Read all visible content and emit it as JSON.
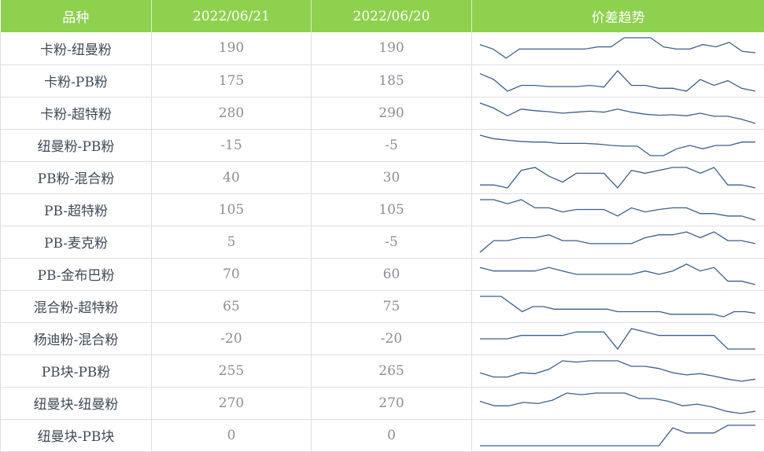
{
  "table": {
    "headers": {
      "variety": "品种",
      "date1": "2022/06/21",
      "date2": "2022/06/20",
      "trend": "价差趋势"
    },
    "rows": [
      {
        "name": "卡粉-纽曼粉",
        "v1": "190",
        "v2": "190",
        "trend": [
          190,
          180,
          160,
          180,
          180,
          180,
          180,
          180,
          180,
          185,
          185,
          205,
          205,
          205,
          185,
          180,
          180,
          190,
          185,
          195,
          175,
          172
        ]
      },
      {
        "name": "卡粉-PB粉",
        "v1": "175",
        "v2": "185",
        "trend": [
          200,
          190,
          170,
          180,
          180,
          178,
          178,
          178,
          180,
          177,
          205,
          180,
          180,
          175,
          175,
          170,
          190,
          180,
          188,
          175,
          170
        ]
      },
      {
        "name": "卡粉-超特粉",
        "v1": "280",
        "v2": "290",
        "trend": [
          310,
          300,
          285,
          298,
          295,
          293,
          290,
          292,
          294,
          292,
          298,
          292,
          288,
          286,
          287,
          285,
          290,
          284,
          284,
          278,
          270
        ]
      },
      {
        "name": "纽曼粉-PB粉",
        "v1": "-15",
        "v2": "-5",
        "trend": [
          5,
          0,
          -2,
          -4,
          -5,
          -5,
          -7,
          -7,
          -7,
          -8,
          -10,
          -11,
          -11,
          -25,
          -25,
          -15,
          -10,
          -15,
          -10,
          -10,
          -5,
          -5
        ]
      },
      {
        "name": "PB粉-混合粉",
        "v1": "40",
        "v2": "30",
        "trend": [
          30,
          30,
          25,
          55,
          60,
          45,
          35,
          50,
          50,
          50,
          25,
          55,
          50,
          55,
          60,
          60,
          50,
          60,
          30,
          30,
          25
        ]
      },
      {
        "name": "PB-超特粉",
        "v1": "105",
        "v2": "105",
        "trend": [
          115,
          115,
          110,
          115,
          105,
          105,
          100,
          103,
          103,
          103,
          95,
          105,
          100,
          103,
          105,
          105,
          98,
          98,
          95,
          95,
          90
        ]
      },
      {
        "name": "PB-麦克粉",
        "v1": "5",
        "v2": "-5",
        "trend": [
          -25,
          -5,
          -5,
          0,
          0,
          5,
          -5,
          -5,
          -10,
          -10,
          -10,
          -10,
          0,
          5,
          5,
          10,
          0,
          10,
          -5,
          -5,
          -10
        ]
      },
      {
        "name": "PB-金布巴粉",
        "v1": "70",
        "v2": "60",
        "trend": [
          80,
          75,
          75,
          75,
          75,
          80,
          75,
          70,
          70,
          70,
          70,
          70,
          75,
          70,
          75,
          85,
          75,
          80,
          60,
          60,
          55
        ]
      },
      {
        "name": "混合粉-超特粉",
        "v1": "65",
        "v2": "75",
        "trend": [
          95,
          95,
          95,
          80,
          65,
          75,
          75,
          70,
          70,
          70,
          70,
          70,
          70,
          65,
          65,
          65,
          65,
          65,
          60,
          60,
          60,
          60,
          60,
          55,
          65,
          65,
          62
        ]
      },
      {
        "name": "杨迪粉-混合粉",
        "v1": "-20",
        "v2": "-20",
        "trend": [
          -5,
          -5,
          -5,
          0,
          0,
          0,
          0,
          5,
          5,
          5,
          -20,
          10,
          5,
          0,
          0,
          0,
          0,
          0,
          -20,
          -20,
          -20
        ]
      },
      {
        "name": "PB块-PB粉",
        "v1": "255",
        "v2": "265",
        "trend": [
          240,
          230,
          230,
          240,
          238,
          248,
          268,
          265,
          268,
          268,
          268,
          255,
          255,
          250,
          240,
          235,
          238,
          232,
          225,
          220,
          225
        ]
      },
      {
        "name": "纽曼块-纽曼粉",
        "v1": "270",
        "v2": "270",
        "trend": [
          280,
          272,
          272,
          278,
          276,
          282,
          295,
          292,
          295,
          295,
          295,
          285,
          285,
          280,
          272,
          275,
          270,
          262,
          258,
          262
        ]
      },
      {
        "name": "纽曼块-PB块",
        "v1": "0",
        "v2": "0",
        "trend": [
          -40,
          -40,
          -40,
          -40,
          -40,
          -40,
          -40,
          -40,
          -40,
          -40,
          -40,
          -40,
          -40,
          -40,
          -5,
          -15,
          -15,
          -15,
          0,
          0,
          0
        ]
      }
    ]
  }
}
